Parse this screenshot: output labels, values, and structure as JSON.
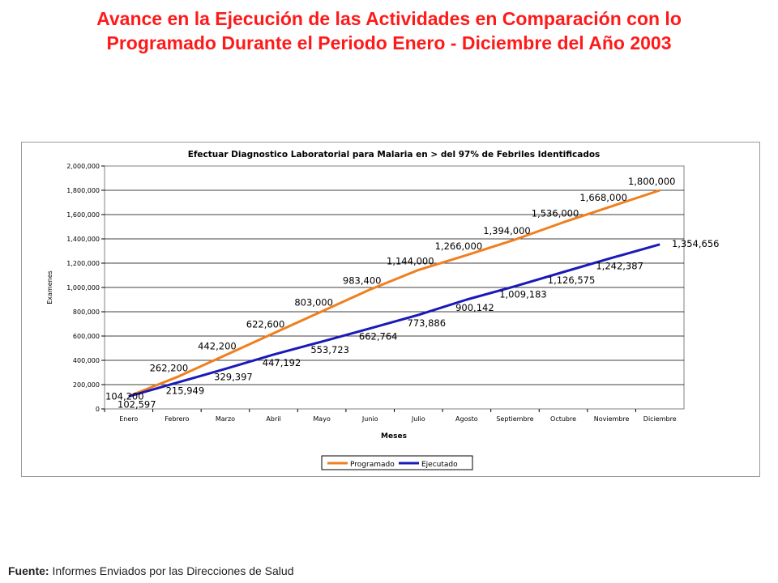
{
  "slide": {
    "title_line1": "Avance en la Ejecución de las Actividades en Comparación con lo",
    "title_line2": "Programado Durante el Periodo Enero - Diciembre del Año 2003"
  },
  "footer": {
    "label": "Fuente:",
    "text": "Informes Enviados por las Direcciones de Salud"
  },
  "chart_data": {
    "type": "line",
    "title": "Efectuar Diagnostico Laboratorial para Malaria en > del 97% de Febriles Identificados",
    "xlabel": "Meses",
    "ylabel": "Examenes",
    "ylim": [
      0,
      2000000
    ],
    "yticks": [
      "0",
      "200,000",
      "400,000",
      "600,000",
      "800,000",
      "1,000,000",
      "1,200,000",
      "1,400,000",
      "1,600,000",
      "1,800,000",
      "2,000,000"
    ],
    "categories": [
      "Enero",
      "Febrero",
      "Marzo",
      "Abril",
      "Mayo",
      "Junio",
      "Julio",
      "Agosto",
      "Septiembre",
      "Octubre",
      "Noviembre",
      "Diciembre"
    ],
    "grid": true,
    "legend_position": "bottom",
    "series": [
      {
        "name": "Programado",
        "color": "#f07f1e",
        "values": [
          104200,
          262200,
          442200,
          622600,
          803000,
          983400,
          1144000,
          1266000,
          1394000,
          1536000,
          1668000,
          1800000
        ],
        "labels": [
          "104,200",
          "262,200",
          "442,200",
          "622,600",
          "803,000",
          "983,400",
          "1,144,000",
          "1,266,000",
          "1,394,000",
          "1,536,000",
          "1,668,000",
          "1,800,000"
        ]
      },
      {
        "name": "Ejecutado",
        "color": "#1a1ab8",
        "values": [
          102597,
          215949,
          329397,
          447192,
          553723,
          662764,
          773886,
          900142,
          1009183,
          1126575,
          1242387,
          1354656
        ],
        "labels": [
          "102,597",
          "215,949",
          "329,397",
          "447,192",
          "553,723",
          "662,764",
          "773,886",
          "900,142",
          "1,009,183",
          "1,126,575",
          "1,242,387",
          "1,354,656"
        ]
      }
    ]
  }
}
